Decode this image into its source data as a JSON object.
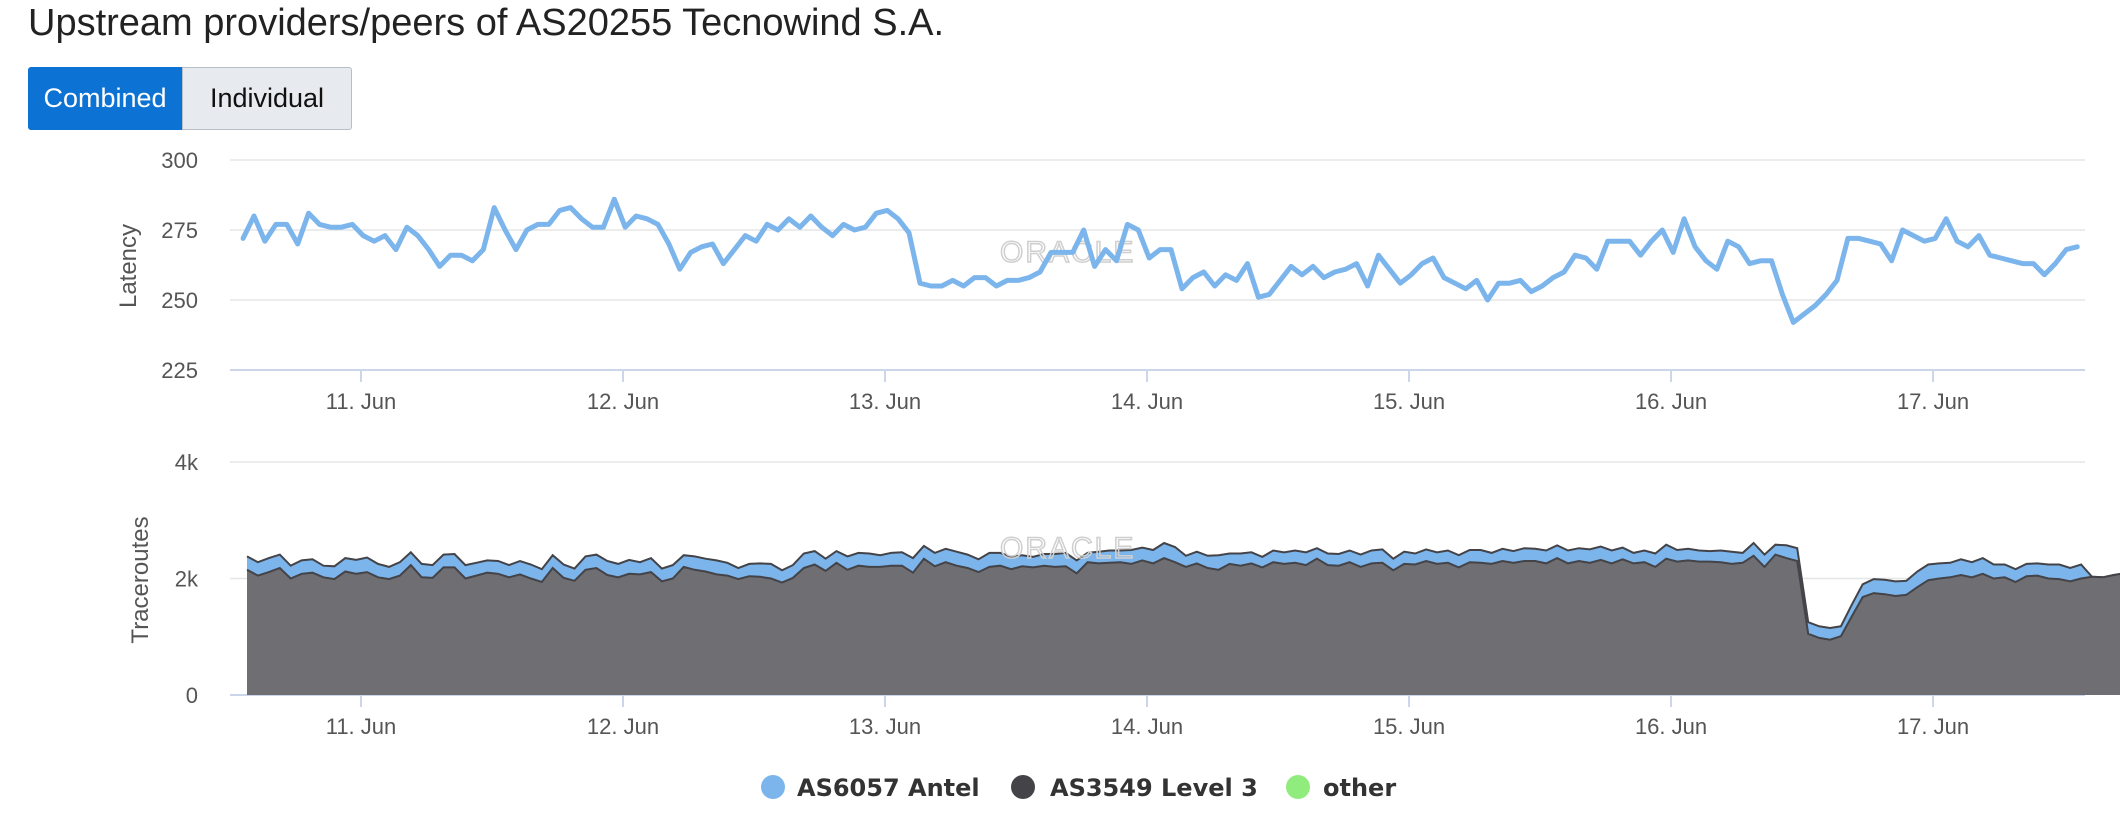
{
  "page": {
    "title": "Upstream providers/peers of AS20255 Tecnowind S.A."
  },
  "toggle": {
    "combined_label": "Combined",
    "individual_label": "Individual",
    "active": "Combined"
  },
  "watermark": "ORACLE",
  "colors": {
    "antel": "#7cb5ec",
    "level3": "#434348",
    "level3_area": "#6e6e73",
    "other": "#90ed7d",
    "grid": "#e6e6e6",
    "axis": "#ccd6eb"
  },
  "chart_data": [
    {
      "type": "line",
      "ylabel": "Latency",
      "ylim": [
        225,
        300
      ],
      "yticks": [
        225,
        250,
        275,
        300
      ],
      "x_range": [
        10.5,
        17.58
      ],
      "xtick_values": [
        11,
        12,
        13,
        14,
        15,
        16,
        17
      ],
      "xtick_labels": [
        "11. Jun",
        "12. Jun",
        "13. Jun",
        "14. Jun",
        "15. Jun",
        "16. Jun",
        "17. Jun"
      ],
      "grid": true,
      "series": [
        {
          "name": "AS6057 Antel",
          "x_start": 10.55,
          "x_step": 0.041667,
          "values": [
            272,
            280,
            271,
            277,
            277,
            270,
            281,
            277,
            276,
            276,
            277,
            273,
            271,
            273,
            268,
            276,
            273,
            268,
            262,
            266,
            266,
            264,
            268,
            283,
            275,
            268,
            275,
            277,
            277,
            282,
            283,
            279,
            276,
            276,
            286,
            276,
            280,
            279,
            277,
            270,
            261,
            267,
            269,
            270,
            263,
            268,
            273,
            271,
            277,
            275,
            279,
            276,
            280,
            276,
            273,
            277,
            275,
            276,
            281,
            282,
            279,
            274,
            256,
            255,
            255,
            257,
            255,
            258,
            258,
            255,
            257,
            257,
            258,
            260,
            267,
            267,
            267,
            275,
            262,
            268,
            264,
            277,
            275,
            265,
            268,
            268,
            254,
            258,
            260,
            255,
            259,
            257,
            263,
            251,
            252,
            257,
            262,
            259,
            262,
            258,
            260,
            261,
            263,
            255,
            266,
            261,
            256,
            259,
            263,
            265,
            258,
            256,
            254,
            257,
            250,
            256,
            256,
            257,
            253,
            255,
            258,
            260,
            266,
            265,
            261,
            271,
            271,
            271,
            266,
            271,
            275,
            267,
            279,
            269,
            264,
            261,
            271,
            269,
            263,
            264,
            264,
            252,
            242,
            245,
            248,
            252,
            257,
            272,
            272,
            271,
            270,
            264,
            275,
            273,
            271,
            272,
            279,
            271,
            269,
            273,
            266,
            265,
            264,
            263,
            263,
            259,
            263,
            268,
            269
          ]
        }
      ]
    },
    {
      "type": "area",
      "stacked": true,
      "ylabel": "Traceroutes",
      "ylim": [
        0,
        4000
      ],
      "yticks": [
        0,
        2000,
        4000
      ],
      "ytick_labels": [
        "0",
        "2k",
        "4k"
      ],
      "x_range": [
        10.5,
        17.58
      ],
      "xtick_values": [
        11,
        12,
        13,
        14,
        15,
        16,
        17
      ],
      "xtick_labels": [
        "11. Jun",
        "12. Jun",
        "13. Jun",
        "14. Jun",
        "15. Jun",
        "16. Jun",
        "17. Jun"
      ],
      "grid": true,
      "legend_position": "bottom",
      "legend": [
        "AS6057 Antel",
        "AS3549 Level 3",
        "other"
      ],
      "series": [
        {
          "name": "AS3549 Level 3",
          "x_start": 10.565,
          "x_step": 0.041667,
          "values": [
            2150,
            2050,
            2110,
            2180,
            2000,
            2080,
            2100,
            2020,
            1990,
            2120,
            2080,
            2110,
            2020,
            1990,
            2050,
            2230,
            2020,
            2010,
            2190,
            2190,
            2000,
            2050,
            2100,
            2080,
            2020,
            2070,
            2000,
            1940,
            2180,
            2010,
            1960,
            2150,
            2180,
            2060,
            2020,
            2080,
            2070,
            2110,
            1950,
            2000,
            2200,
            2150,
            2120,
            2070,
            2050,
            1990,
            2040,
            2030,
            2000,
            1930,
            2010,
            2180,
            2240,
            2130,
            2270,
            2150,
            2220,
            2200,
            2200,
            2220,
            2220,
            2100,
            2340,
            2210,
            2280,
            2220,
            2180,
            2110,
            2200,
            2220,
            2160,
            2210,
            2190,
            2220,
            2200,
            2210,
            2090,
            2280,
            2260,
            2270,
            2280,
            2250,
            2310,
            2260,
            2350,
            2280,
            2200,
            2260,
            2180,
            2150,
            2250,
            2220,
            2260,
            2190,
            2280,
            2250,
            2270,
            2230,
            2340,
            2230,
            2220,
            2280,
            2200,
            2260,
            2270,
            2140,
            2250,
            2240,
            2300,
            2250,
            2270,
            2190,
            2280,
            2270,
            2250,
            2300,
            2270,
            2300,
            2300,
            2260,
            2350,
            2260,
            2300,
            2270,
            2320,
            2260,
            2330,
            2260,
            2280,
            2200,
            2340,
            2290,
            2310,
            2290,
            2290,
            2280,
            2250,
            2270,
            2390,
            2200,
            2410,
            2350,
            2300,
            1050,
            980,
            950,
            1010,
            1350,
            1680,
            1750,
            1730,
            1700,
            1720,
            1850,
            1970,
            2000,
            2020,
            2060,
            2020,
            2080,
            2000,
            2020,
            1940,
            2040,
            2050,
            2000,
            1990,
            1950,
            2000,
            2030,
            2020,
            2060,
            2090
          ]
        },
        {
          "name": "AS6057 Antel",
          "x_start": 10.565,
          "x_step": 0.041667,
          "values": [
            230,
            230,
            240,
            230,
            220,
            230,
            230,
            200,
            220,
            230,
            240,
            250,
            230,
            210,
            230,
            220,
            230,
            220,
            220,
            230,
            230,
            220,
            210,
            220,
            210,
            230,
            240,
            220,
            220,
            230,
            210,
            230,
            230,
            240,
            230,
            240,
            210,
            240,
            220,
            230,
            200,
            230,
            220,
            240,
            220,
            190,
            210,
            230,
            250,
            210,
            220,
            250,
            230,
            210,
            200,
            230,
            220,
            230,
            200,
            220,
            230,
            250,
            220,
            230,
            230,
            240,
            230,
            220,
            240,
            220,
            210,
            190,
            180,
            200,
            220,
            230,
            220,
            160,
            200,
            210,
            200,
            240,
            220,
            230,
            260,
            260,
            190,
            200,
            210,
            250,
            180,
            210,
            190,
            180,
            200,
            200,
            210,
            220,
            180,
            200,
            200,
            200,
            210,
            220,
            230,
            200,
            210,
            190,
            200,
            200,
            210,
            210,
            210,
            220,
            190,
            210,
            200,
            220,
            210,
            220,
            220,
            220,
            220,
            230,
            230,
            220,
            200,
            180,
            200,
            230,
            240,
            200,
            200,
            190,
            180,
            200,
            210,
            170,
            220,
            210,
            170,
            220,
            220,
            200,
            200,
            200,
            170,
            200,
            220,
            240,
            250,
            250,
            240,
            270,
            270,
            260,
            250,
            270,
            260,
            270,
            240,
            220,
            220,
            210,
            210,
            240,
            250,
            230,
            240
          ]
        },
        {
          "name": "other",
          "x_start": 10.565,
          "x_step": 0.041667,
          "values": [
            0
          ]
        }
      ]
    }
  ]
}
